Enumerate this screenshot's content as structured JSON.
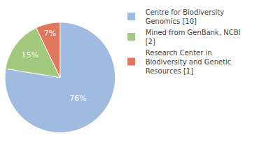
{
  "chart_data": {
    "type": "pie",
    "categories": [
      "Centre for Biodiversity Genomics [10]",
      "Mined from GenBank, NCBI [2]",
      "Research Center in Biodiversity and Genetic Resources [1]"
    ],
    "values": [
      76,
      15,
      7
    ],
    "value_labels": [
      "76%",
      "15%",
      "7%"
    ],
    "colors": [
      "#9fbbe0",
      "#a2c87e",
      "#e0775c"
    ],
    "data_labels": true,
    "legend": "upper right"
  }
}
